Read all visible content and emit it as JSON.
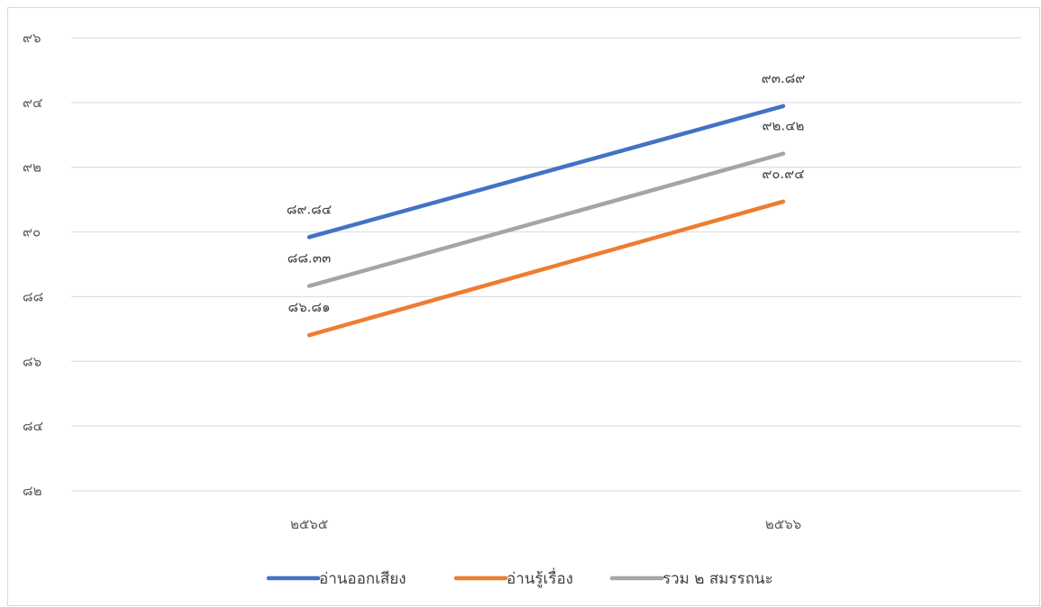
{
  "chart_data": {
    "type": "line",
    "categories": [
      "๒๕๖๕",
      "๒๕๖๖"
    ],
    "series": [
      {
        "name": "อ่านออกเสียง",
        "values": [
          89.84,
          93.89
        ],
        "labels": [
          "๘๙.๘๔",
          "๙๓.๘๙"
        ],
        "color": "#4472C4"
      },
      {
        "name": "อ่านรู้เรื่อง",
        "values": [
          86.81,
          90.94
        ],
        "labels": [
          "๘๖.๘๑",
          "๙๐.๙๔"
        ],
        "color": "#ED7D31"
      },
      {
        "name": "รวม ๒ สมรรถนะ",
        "values": [
          88.33,
          92.42
        ],
        "labels": [
          "๘๘.๓๓",
          "๙๒.๔๒"
        ],
        "color": "#A5A5A5"
      }
    ],
    "ylim": [
      82,
      96
    ],
    "y_ticks": [
      {
        "value": 82,
        "label": "๘๒"
      },
      {
        "value": 84,
        "label": "๘๔"
      },
      {
        "value": 86,
        "label": "๘๖"
      },
      {
        "value": 88,
        "label": "๘๘"
      },
      {
        "value": 90,
        "label": "๙๐"
      },
      {
        "value": 92,
        "label": "๙๒"
      },
      {
        "value": 94,
        "label": "๙๔"
      },
      {
        "value": 96,
        "label": "๙๖"
      }
    ],
    "grid": true,
    "legend_position": "bottom"
  }
}
